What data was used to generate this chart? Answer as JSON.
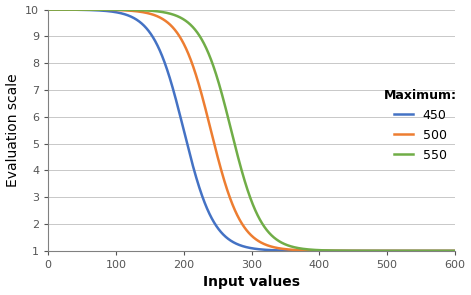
{
  "title": "",
  "xlabel": "Input values",
  "ylabel": "Evaluation scale",
  "xlim": [
    0,
    600
  ],
  "ylim": [
    1,
    10
  ],
  "xticks": [
    0,
    100,
    200,
    300,
    400,
    500,
    600
  ],
  "yticks": [
    1,
    2,
    3,
    4,
    5,
    6,
    7,
    8,
    9,
    10
  ],
  "curves": [
    {
      "label": "450",
      "color": "#4472C4",
      "maximum": 450,
      "midpoint": 200,
      "k": 0.045
    },
    {
      "label": "500",
      "color": "#ED7D31",
      "maximum": 500,
      "midpoint": 240,
      "k": 0.045
    },
    {
      "label": "550",
      "color": "#70AD47",
      "maximum": 550,
      "midpoint": 270,
      "k": 0.045
    }
  ],
  "legend_title": "Maximum:",
  "legend_fontsize": 9,
  "axis_label_fontsize": 10,
  "tick_fontsize": 8,
  "line_width": 1.8,
  "background_color": "#ffffff",
  "grid_color": "#c8c8c8"
}
